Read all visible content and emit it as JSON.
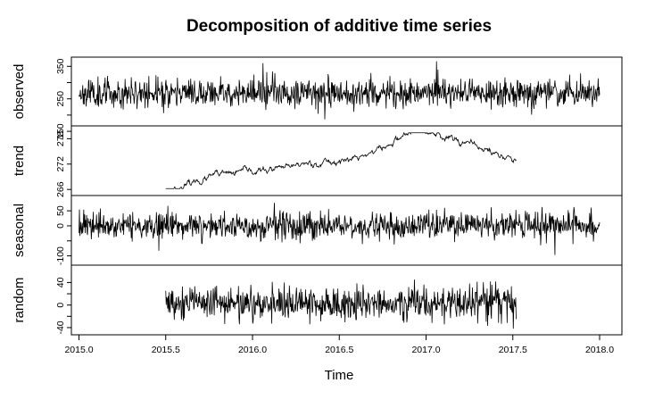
{
  "chart_data": {
    "type": "line",
    "title": "Decomposition of additive time series",
    "xlabel": "Time",
    "xlim": [
      2015.0,
      2018.0
    ],
    "x_ticks": [
      "2015.0",
      "2015.5",
      "2016.0",
      "2016.5",
      "2017.0",
      "2017.5",
      "2018.0"
    ],
    "x_tick_values": [
      2015.0,
      2015.5,
      2016.0,
      2016.5,
      2017.0,
      2017.5,
      2018.0
    ],
    "frequency": 365,
    "grid": false,
    "panels": [
      {
        "name": "observed",
        "ylabel": "observed",
        "ylim": [
          175,
          370
        ],
        "y_ticks": [
          "150",
          "250",
          "350"
        ],
        "y_tick_values": [
          150,
          250,
          350
        ],
        "extra_y_ticks": [
          "200",
          "300"
        ],
        "extra_y_tick_values": [
          200,
          300
        ],
        "x_range": [
          2015.0,
          2018.0
        ],
        "model": {
          "kind": "observed",
          "base": 268,
          "noise_sd": 22,
          "spike_prob": 0.015,
          "spike_size": 45,
          "seed": 11
        }
      },
      {
        "name": "trend",
        "ylabel": "trend",
        "ylim": [
          265.2,
          280.4
        ],
        "y_ticks": [
          "266",
          "272",
          "278"
        ],
        "y_tick_values": [
          266,
          272,
          278
        ],
        "x_range": [
          2015.5,
          2017.52
        ],
        "anchors": [
          [
            2015.5,
            265.6
          ],
          [
            2015.6,
            266.8
          ],
          [
            2015.7,
            268.2
          ],
          [
            2015.8,
            269.4
          ],
          [
            2016.0,
            270.3
          ],
          [
            2016.2,
            271.0
          ],
          [
            2016.3,
            272.2
          ],
          [
            2016.45,
            272.4
          ],
          [
            2016.55,
            273.0
          ],
          [
            2016.6,
            273.4
          ],
          [
            2016.75,
            275.8
          ],
          [
            2016.9,
            279.2
          ],
          [
            2016.95,
            279.9
          ],
          [
            2017.05,
            279.3
          ],
          [
            2017.15,
            278.2
          ],
          [
            2017.3,
            276.0
          ],
          [
            2017.45,
            273.8
          ],
          [
            2017.52,
            272.8
          ]
        ],
        "model": {
          "kind": "smooth",
          "noise_sd": 0.25,
          "seed": 23
        }
      },
      {
        "name": "seasonal",
        "ylabel": "seasonal",
        "ylim": [
          -122,
          92
        ],
        "y_ticks": [
          "-100",
          "0",
          "50"
        ],
        "y_tick_values": [
          -100,
          0,
          50
        ],
        "extra_y_ticks": [
          "-50"
        ],
        "extra_y_tick_values": [
          -50
        ],
        "x_range": [
          2015.0,
          2018.0
        ],
        "model": {
          "kind": "noise",
          "base": 0,
          "noise_sd": 22,
          "spike_prob": 0.015,
          "spike_size": 45,
          "seed": 37
        }
      },
      {
        "name": "random",
        "ylabel": "random",
        "ylim": [
          -48,
          66
        ],
        "y_ticks": [
          "-40",
          "0",
          "40"
        ],
        "y_tick_values": [
          -40,
          0,
          40
        ],
        "extra_y_ticks": [
          "-20",
          "20"
        ],
        "extra_y_tick_values": [
          -20,
          20
        ],
        "x_range": [
          2015.5,
          2017.52
        ],
        "model": {
          "kind": "noise",
          "base": 4,
          "noise_sd": 15,
          "spike_prob": 0.02,
          "spike_size": 25,
          "seed": 53
        }
      }
    ]
  }
}
